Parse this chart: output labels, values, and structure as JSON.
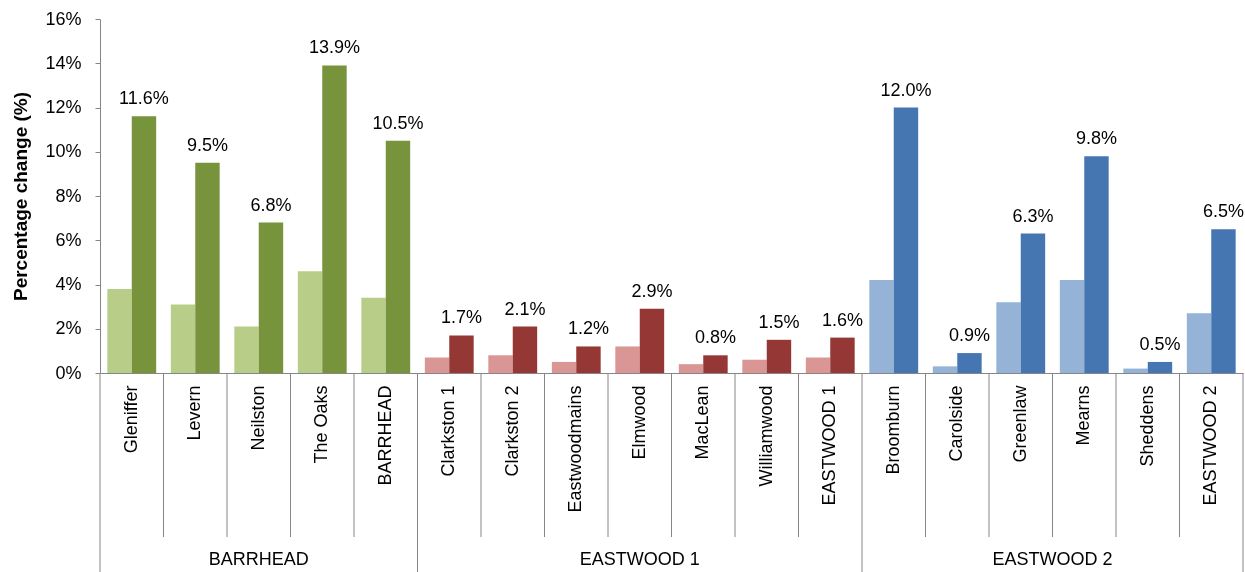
{
  "chart_data": {
    "type": "bar",
    "ylabel": "Percentage change (%)",
    "categories": [
      "Gleniffer",
      "Levern",
      "Neilston",
      "The Oaks",
      "BARRHEAD",
      "Clarkston 1",
      "Clarkston 2",
      "Eastwoodmains",
      "Elmwood",
      "MacLean",
      "Williamwood",
      "EASTWOOD 1",
      "Broomburn",
      "Carolside",
      "Greenlaw",
      "Mearns",
      "Sheddens",
      "EASTWOOD 2"
    ],
    "series": [
      {
        "colors": [
          "#b8ce88",
          "#b8ce88",
          "#b8ce88",
          "#b8ce88",
          "#b8ce88",
          "#d99694",
          "#d99694",
          "#d99694",
          "#d99694",
          "#d99694",
          "#d99694",
          "#d99694",
          "#95b3d7",
          "#95b3d7",
          "#95b3d7",
          "#95b3d7",
          "#95b3d7",
          "#95b3d7"
        ],
        "values": [
          3.8,
          3.1,
          2.1,
          4.6,
          3.4,
          0.7,
          0.8,
          0.5,
          1.2,
          0.4,
          0.6,
          0.7,
          4.2,
          0.3,
          3.2,
          4.2,
          0.2,
          2.7
        ]
      },
      {
        "colors": [
          "#77933c",
          "#77933c",
          "#77933c",
          "#77933c",
          "#77933c",
          "#953735",
          "#953735",
          "#953735",
          "#953735",
          "#953735",
          "#953735",
          "#953735",
          "#4576b1",
          "#4576b1",
          "#4576b1",
          "#4576b1",
          "#4576b1",
          "#4576b1"
        ],
        "values": [
          11.6,
          9.5,
          6.8,
          13.9,
          10.5,
          1.7,
          2.1,
          1.2,
          2.9,
          0.8,
          1.5,
          1.6,
          12.0,
          0.9,
          6.3,
          9.8,
          0.5,
          6.5
        ],
        "value_labels": [
          "11.6%",
          "9.5%",
          "6.8%",
          "13.9%",
          "10.5%",
          "1.7%",
          "2.1%",
          "1.2%",
          "2.9%",
          "0.8%",
          "1.5%",
          "1.6%",
          "12.0%",
          "0.9%",
          "6.3%",
          "9.8%",
          "0.5%",
          "6.5%"
        ]
      }
    ],
    "ylim": [
      0,
      16
    ],
    "yticks": [
      {
        "value": 0,
        "label": "0%"
      },
      {
        "value": 2,
        "label": "2%"
      },
      {
        "value": 4,
        "label": "4%"
      },
      {
        "value": 6,
        "label": "6%"
      },
      {
        "value": 8,
        "label": "8%"
      },
      {
        "value": 10,
        "label": "10%"
      },
      {
        "value": 12,
        "label": "12%"
      },
      {
        "value": 14,
        "label": "14%"
      },
      {
        "value": 16,
        "label": "16%"
      }
    ],
    "annotations": [
      "BARRHEAD",
      "EASTWOOD 1",
      "EASTWOOD 2"
    ],
    "grid": false
  }
}
